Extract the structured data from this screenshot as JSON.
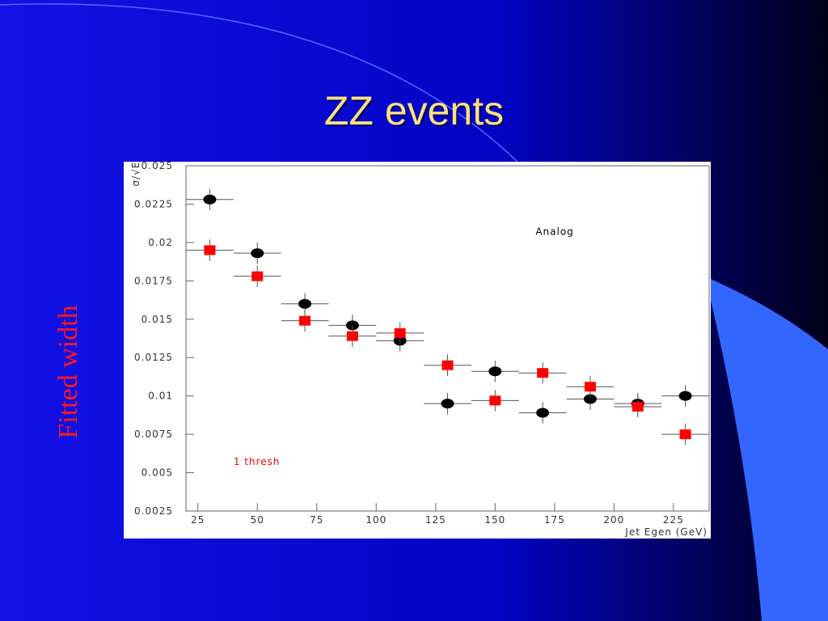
{
  "slide_title": "ZZ events",
  "side_label": "Fitted width",
  "chart_data": {
    "type": "errorbar",
    "x_label": "Jet Egen (GeV)",
    "y_label": "σ/√E",
    "annotations": [
      {
        "text": "Analog",
        "x": 167,
        "y": 0.0205,
        "color": "#000000"
      },
      {
        "text": "1 thresh",
        "x": 40,
        "y": 0.0055,
        "color": "#ff0000"
      }
    ],
    "xlim": [
      20,
      240
    ],
    "xticks": [
      25,
      50,
      75,
      100,
      125,
      150,
      175,
      200,
      225
    ],
    "ylim": [
      0.0025,
      0.025
    ],
    "yticks": [
      0.025,
      0.0225,
      0.02,
      0.0175,
      0.015,
      0.0125,
      0.01,
      0.0075,
      0.005,
      0.0025
    ],
    "x": [
      30,
      50,
      70,
      90,
      110,
      130,
      150,
      170,
      190,
      210,
      230
    ],
    "series": [
      {
        "color": "#000000",
        "marker": "circle",
        "values": [
          0.0228,
          0.0193,
          0.016,
          0.0146,
          0.0136,
          0.0095,
          0.0116,
          0.0089,
          0.0098,
          0.0095,
          0.01
        ],
        "x_errors": [
          10,
          10,
          10,
          10,
          10,
          10,
          10,
          10,
          10,
          10,
          10
        ],
        "y_errors": [
          0.0007,
          0.0007,
          0.0007,
          0.0007,
          0.0007,
          0.0007,
          0.0007,
          0.0007,
          0.0007,
          0.0007,
          0.0007
        ]
      },
      {
        "color": "#ff0000",
        "marker": "square",
        "values": [
          0.0195,
          0.0178,
          0.0149,
          0.0139,
          0.0141,
          0.012,
          0.0097,
          0.0115,
          0.0106,
          0.0093,
          0.0075
        ],
        "x_errors": [
          10,
          10,
          10,
          10,
          10,
          10,
          10,
          10,
          10,
          10,
          10
        ],
        "y_errors": [
          0.0007,
          0.0007,
          0.0007,
          0.0007,
          0.0007,
          0.0007,
          0.0007,
          0.0007,
          0.0007,
          0.0007,
          0.0007
        ]
      }
    ]
  }
}
